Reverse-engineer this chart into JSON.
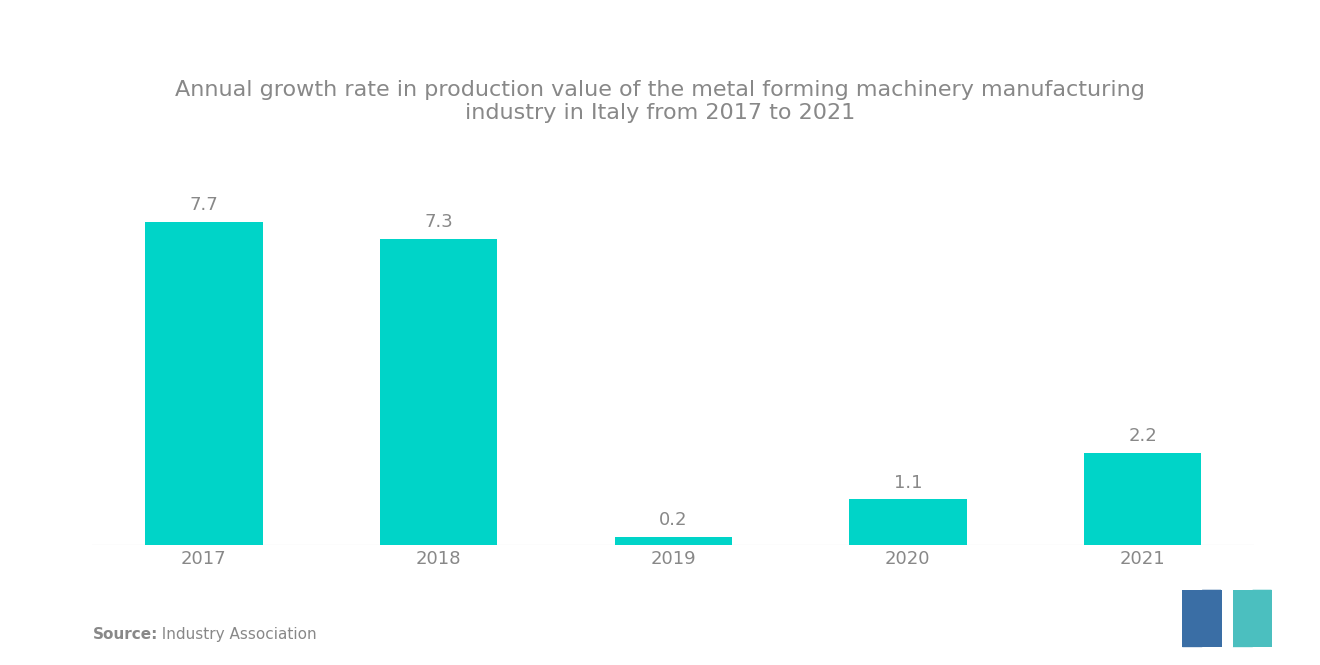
{
  "title_line1": "Annual growth rate in production value of the metal forming machinery manufacturing",
  "title_line2": "industry in Italy from 2017 to 2021",
  "categories": [
    "2017",
    "2018",
    "2019",
    "2020",
    "2021"
  ],
  "values": [
    7.7,
    7.3,
    0.2,
    1.1,
    2.2
  ],
  "bar_color": "#00D4C8",
  "background_color": "#FFFFFF",
  "title_color": "#888888",
  "label_color": "#888888",
  "source_bold": "Source:",
  "source_rest": "  Industry Association",
  "value_labels": [
    "7.7",
    "7.3",
    "0.2",
    "1.1",
    "2.2"
  ],
  "ylim": [
    0,
    9.5
  ],
  "title_fontsize": 16,
  "label_fontsize": 13,
  "tick_fontsize": 13,
  "source_fontsize": 11,
  "bar_width": 0.5,
  "logo_color_left": "#3A6EA5",
  "logo_color_right": "#4BBFBF"
}
